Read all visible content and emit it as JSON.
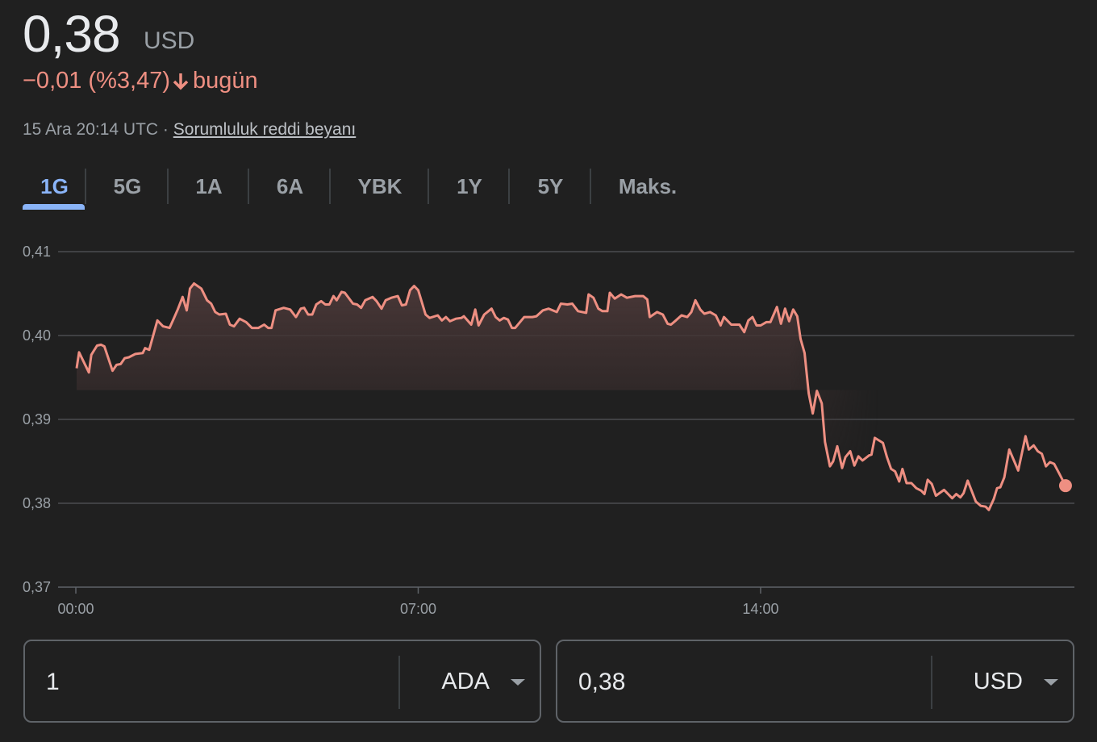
{
  "header": {
    "price": "0,38",
    "currency": "USD",
    "change": "−0,01 (%3,47)",
    "change_direction_icon": "arrow-down-icon",
    "change_period": "bugün",
    "timestamp": "15 Ara 20:14 UTC ·",
    "disclaimer_link": "Sorumluluk reddi beyanı"
  },
  "colors": {
    "accent": "#8ab4f8",
    "negative": "#ee8f82",
    "background": "#202020"
  },
  "tabs": [
    {
      "label": "1G",
      "active": true
    },
    {
      "label": "5G"
    },
    {
      "label": "1A"
    },
    {
      "label": "6A"
    },
    {
      "label": "YBK"
    },
    {
      "label": "1Y"
    },
    {
      "label": "5Y"
    },
    {
      "label": "Maks."
    }
  ],
  "chart_data": {
    "type": "area",
    "ylim": [
      0.37,
      0.41
    ],
    "y_ticks": [
      "0,41",
      "0,40",
      "0,39",
      "0,38",
      "0,37"
    ],
    "y_tick_values": [
      0.41,
      0.4,
      0.39,
      0.38,
      0.37
    ],
    "x_ticks": [
      "00:00",
      "07:00",
      "14:00"
    ],
    "grid": true,
    "line_color": "#ee8f82",
    "series": [
      {
        "x": [
          "00:01",
          "00:04",
          "00:16",
          "00:19",
          "00:26",
          "00:31",
          "00:35",
          "00:45",
          "00:50",
          "00:55",
          "01:00",
          "01:05",
          "01:13",
          "01:22",
          "01:25",
          "01:30",
          "01:40",
          "01:47",
          "01:55",
          "02:00",
          "02:05",
          "02:11",
          "02:16",
          "02:20",
          "02:25",
          "02:34",
          "02:41",
          "02:46",
          "02:51",
          "02:56",
          "03:04",
          "03:09",
          "03:14",
          "03:21",
          "03:29",
          "03:36",
          "03:44",
          "03:51",
          "03:56",
          "04:00",
          "04:05",
          "04:15",
          "04:23",
          "04:30",
          "04:36",
          "04:40",
          "04:45",
          "04:50",
          "04:55",
          "05:01",
          "05:06",
          "05:11",
          "05:16",
          "05:20",
          "05:26",
          "05:30",
          "05:40",
          "05:45",
          "05:50",
          "05:55",
          "06:04",
          "06:09",
          "06:15",
          "06:20",
          "06:27",
          "06:35",
          "06:40",
          "06:45",
          "06:50",
          "06:55",
          "07:00",
          "07:09",
          "07:14",
          "07:24",
          "07:29",
          "07:34",
          "07:39",
          "07:46",
          "07:53",
          "07:56",
          "08:05",
          "08:10",
          "08:14",
          "08:21",
          "08:30",
          "08:35",
          "08:40",
          "08:45",
          "08:50",
          "08:55",
          "08:59",
          "09:10",
          "09:20",
          "09:25",
          "09:33",
          "09:40",
          "09:50",
          "09:55",
          "10:03",
          "10:09",
          "10:16",
          "10:26",
          "10:29",
          "10:35",
          "10:41",
          "10:46",
          "10:52",
          "10:55",
          "11:01",
          "11:09",
          "11:16",
          "11:26",
          "11:36",
          "11:41",
          "11:44",
          "11:53",
          "12:00",
          "12:06",
          "12:10",
          "12:16",
          "12:23",
          "12:30",
          "12:35",
          "12:40",
          "12:46",
          "12:51",
          "12:58",
          "13:05",
          "13:11",
          "13:15",
          "13:24",
          "13:34",
          "13:40",
          "13:45",
          "13:50",
          "13:55",
          "14:00",
          "14:07",
          "14:12",
          "14:20",
          "14:25",
          "14:30",
          "14:35",
          "14:40",
          "14:45",
          "14:49",
          "14:54",
          "14:59",
          "15:04",
          "15:09",
          "15:15",
          "15:19",
          "15:25",
          "15:29",
          "15:34",
          "15:40",
          "15:44",
          "15:50",
          "15:55",
          "16:00",
          "16:05",
          "16:13",
          "16:16",
          "16:20",
          "16:30",
          "16:35",
          "16:40",
          "16:45",
          "16:50",
          "16:54",
          "16:59",
          "17:05",
          "17:11",
          "17:17",
          "17:21",
          "17:25",
          "17:30",
          "17:35",
          "17:45",
          "17:55",
          "18:00",
          "18:05",
          "18:09",
          "18:14",
          "18:24",
          "18:30",
          "18:36",
          "18:40",
          "18:46",
          "18:50",
          "18:54",
          "18:59",
          "19:05",
          "19:16",
          "19:25",
          "19:29",
          "19:35",
          "19:40",
          "19:45",
          "19:50",
          "19:55",
          "20:00",
          "20:06",
          "20:14"
        ],
        "values": [
          0.3961,
          0.398,
          0.3956,
          0.3977,
          0.3988,
          0.3989,
          0.3987,
          0.3958,
          0.3965,
          0.3966,
          0.3973,
          0.3974,
          0.3978,
          0.3979,
          0.3985,
          0.3983,
          0.4018,
          0.4011,
          0.4009,
          0.402,
          0.4031,
          0.4046,
          0.403,
          0.4056,
          0.4062,
          0.4056,
          0.4042,
          0.4038,
          0.4028,
          0.4025,
          0.4026,
          0.4013,
          0.4011,
          0.402,
          0.4016,
          0.4009,
          0.4009,
          0.4013,
          0.4009,
          0.4009,
          0.403,
          0.4033,
          0.4031,
          0.4022,
          0.4032,
          0.4033,
          0.4025,
          0.4025,
          0.4037,
          0.4041,
          0.4037,
          0.4037,
          0.4047,
          0.4042,
          0.4052,
          0.4051,
          0.4038,
          0.4037,
          0.4033,
          0.4042,
          0.4046,
          0.4041,
          0.4032,
          0.4042,
          0.4045,
          0.4047,
          0.4036,
          0.4037,
          0.4054,
          0.4059,
          0.4054,
          0.4025,
          0.4021,
          0.4024,
          0.4018,
          0.4022,
          0.4017,
          0.402,
          0.4021,
          0.4023,
          0.4013,
          0.4031,
          0.4012,
          0.4025,
          0.4032,
          0.4022,
          0.4018,
          0.4021,
          0.4019,
          0.4009,
          0.4009,
          0.4022,
          0.4022,
          0.4023,
          0.403,
          0.4032,
          0.4028,
          0.4038,
          0.4037,
          0.4038,
          0.4029,
          0.4027,
          0.4049,
          0.4045,
          0.4032,
          0.4029,
          0.4029,
          0.4051,
          0.4044,
          0.4049,
          0.4045,
          0.4047,
          0.4047,
          0.4043,
          0.4022,
          0.4028,
          0.4025,
          0.4014,
          0.4013,
          0.4018,
          0.4024,
          0.4022,
          0.4028,
          0.4042,
          0.4031,
          0.4026,
          0.4028,
          0.4024,
          0.4012,
          0.4022,
          0.4013,
          0.4013,
          0.4004,
          0.4018,
          0.4022,
          0.4012,
          0.4012,
          0.4016,
          0.4016,
          0.4034,
          0.4014,
          0.4032,
          0.4017,
          0.4031,
          0.4023,
          0.3996,
          0.3979,
          0.3931,
          0.3907,
          0.3934,
          0.3919,
          0.3873,
          0.3844,
          0.385,
          0.3868,
          0.3842,
          0.3855,
          0.3862,
          0.3845,
          0.3856,
          0.3851,
          0.3857,
          0.3858,
          0.3878,
          0.3872,
          0.3855,
          0.3841,
          0.3838,
          0.3826,
          0.3841,
          0.3824,
          0.3824,
          0.3818,
          0.3815,
          0.3811,
          0.3828,
          0.3823,
          0.3809,
          0.3816,
          0.3806,
          0.3811,
          0.3807,
          0.3812,
          0.3827,
          0.3802,
          0.3797,
          0.3796,
          0.3792,
          0.3805,
          0.3818,
          0.3819,
          0.3831,
          0.3864,
          0.3839,
          0.388,
          0.3864,
          0.3869,
          0.3862,
          0.3859,
          0.3844,
          0.3849,
          0.3847,
          0.3836,
          0.3821
        ]
      }
    ]
  },
  "converter": {
    "from": {
      "value": "1",
      "unit": "ADA"
    },
    "to": {
      "value": "0,38",
      "unit": "USD"
    },
    "dropdown_icon": "caret-down-icon"
  }
}
